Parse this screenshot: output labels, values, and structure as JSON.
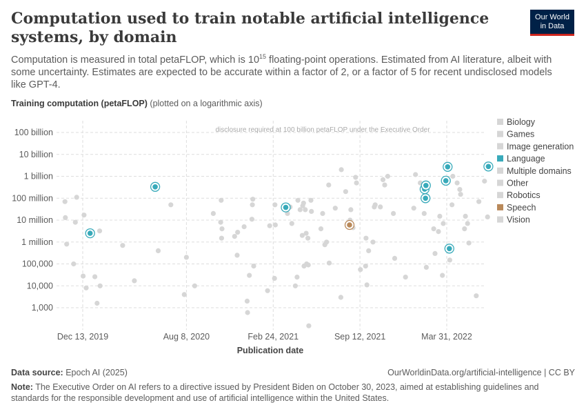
{
  "header": {
    "title": "Computation used to train notable artificial intelligence systems, by domain",
    "logo_line1": "Our World",
    "logo_line2": "in Data",
    "subtitle_pre": "Computation is measured in total petaFLOP, which is 10",
    "subtitle_sup": "15",
    "subtitle_post": " floating-point operations. Estimated from AI literature, albeit with some uncertainty. Estimates are expected to be accurate within a factor of 2, or a factor of 5 for recent undisclosed models like GPT-4."
  },
  "axis_title": {
    "bold": "Training computation (petaFLOP)",
    "note": "(plotted on a logarithmic axis)"
  },
  "footer": {
    "source_label": "Data source:",
    "source_value": "Epoch AI (2025)",
    "url": "OurWorldinData.org/artificial-intelligence | CC BY",
    "note_label": "Note:",
    "note_text": "The Executive Order on AI refers to a directive issued by President Biden on October 30, 2023, aimed at establishing guidelines and standards for the responsible development and use of artificial intelligence within the United States."
  },
  "colors": {
    "muted_point": "#d6d6d6",
    "language": "#38aaba",
    "speech": "#b9895a",
    "grid": "#dddddd",
    "text": "#5b5b5b"
  },
  "chart_data": {
    "type": "scatter",
    "title": "Computation used to train notable artificial intelligence systems, by domain",
    "xlabel": "Publication date",
    "ylabel": "Training computation (petaFLOP)",
    "y_scale": "log",
    "ylim": [
      400,
      200000000000
    ],
    "xlim": [
      "2019-11-01",
      "2022-07-10"
    ],
    "grid": true,
    "legend_position": "right",
    "x_ticks": [
      {
        "date": "2019-12-13",
        "label": "Dec 13, 2019"
      },
      {
        "date": "2020-08-08",
        "label": "Aug 8, 2020"
      },
      {
        "date": "2021-02-24",
        "label": "Feb 24, 2021"
      },
      {
        "date": "2021-09-12",
        "label": "Sep 12, 2021"
      },
      {
        "date": "2022-03-31",
        "label": "Mar 31, 2022"
      }
    ],
    "y_ticks": [
      {
        "value": 1000,
        "label": "1,000"
      },
      {
        "value": 10000,
        "label": "10,000"
      },
      {
        "value": 100000,
        "label": "100,000"
      },
      {
        "value": 1000000,
        "label": "1 million"
      },
      {
        "value": 10000000,
        "label": "10 million"
      },
      {
        "value": 100000000,
        "label": "100 million"
      },
      {
        "value": 1000000000,
        "label": "1 billion"
      },
      {
        "value": 10000000000,
        "label": "10 billion"
      },
      {
        "value": 100000000000,
        "label": "100 billion"
      }
    ],
    "threshold": {
      "value": 100000000000,
      "label": "disclosure required at 100 billion petaFLOP under the Executive Order"
    },
    "legend": [
      {
        "name": "Biology",
        "color": "#d6d6d6"
      },
      {
        "name": "Games",
        "color": "#d6d6d6"
      },
      {
        "name": "Image generation",
        "color": "#d6d6d6"
      },
      {
        "name": "Language",
        "color": "#38aaba"
      },
      {
        "name": "Multiple domains",
        "color": "#d6d6d6"
      },
      {
        "name": "Other",
        "color": "#d6d6d6"
      },
      {
        "name": "Robotics",
        "color": "#d6d6d6"
      },
      {
        "name": "Speech",
        "color": "#b9895a"
      },
      {
        "name": "Vision",
        "color": "#d6d6d6"
      }
    ],
    "highlighted": [
      {
        "domain": "Language",
        "date": "2019-12-30",
        "value": 2500000
      },
      {
        "domain": "Language",
        "date": "2020-05-28",
        "value": 330000000
      },
      {
        "domain": "Language",
        "date": "2021-03-25",
        "value": 38000000
      },
      {
        "domain": "Language",
        "date": "2022-02-08",
        "value": 260000000
      },
      {
        "domain": "Language",
        "date": "2022-02-10",
        "value": 100000000
      },
      {
        "domain": "Language",
        "date": "2022-02-11",
        "value": 380000000
      },
      {
        "domain": "Language",
        "date": "2022-03-29",
        "value": 630000000
      },
      {
        "domain": "Language",
        "date": "2022-04-02",
        "value": 2700000000
      },
      {
        "domain": "Language",
        "date": "2022-04-06",
        "value": 500000
      },
      {
        "domain": "Language",
        "date": "2022-07-05",
        "value": 2800000000
      },
      {
        "domain": "Speech",
        "date": "2021-08-19",
        "value": 6000000
      }
    ],
    "other_points": [
      [
        "2019-11-02",
        70000000
      ],
      [
        "2019-11-03",
        13000000
      ],
      [
        "2019-11-06",
        800000
      ],
      [
        "2019-11-22",
        100000
      ],
      [
        "2019-11-26",
        8000000
      ],
      [
        "2019-11-29",
        110000000
      ],
      [
        "2019-12-14",
        28000
      ],
      [
        "2019-12-16",
        17000000
      ],
      [
        "2019-12-21",
        8000
      ],
      [
        "2020-01-10",
        26000
      ],
      [
        "2020-01-15",
        1600
      ],
      [
        "2020-01-21",
        3200000
      ],
      [
        "2020-01-22",
        10000
      ],
      [
        "2020-03-14",
        700000
      ],
      [
        "2020-04-10",
        17000
      ],
      [
        "2020-06-04",
        400000
      ],
      [
        "2020-07-03",
        50000000
      ],
      [
        "2020-08-03",
        4000
      ],
      [
        "2020-08-08",
        200000
      ],
      [
        "2020-08-27",
        10000
      ],
      [
        "2020-10-09",
        20000000
      ],
      [
        "2020-10-26",
        8000000
      ],
      [
        "2020-10-27",
        80000000
      ],
      [
        "2020-10-28",
        1500000
      ],
      [
        "2020-10-29",
        4000000
      ],
      [
        "2020-11-27",
        1800000
      ],
      [
        "2020-12-03",
        250000
      ],
      [
        "2020-12-04",
        2800000
      ],
      [
        "2020-12-19",
        5000000
      ],
      [
        "2020-12-26",
        2000
      ],
      [
        "2020-12-27",
        600
      ],
      [
        "2020-12-31",
        30000
      ],
      [
        "2021-01-06",
        11000000
      ],
      [
        "2021-01-07",
        50000000
      ],
      [
        "2021-01-08",
        90000000
      ],
      [
        "2021-01-10",
        80000
      ],
      [
        "2021-02-11",
        6000
      ],
      [
        "2021-02-16",
        5500000
      ],
      [
        "2021-02-27",
        22000
      ],
      [
        "2021-02-28",
        50000000
      ],
      [
        "2021-03-01",
        6000000
      ],
      [
        "2021-03-29",
        20000000
      ],
      [
        "2021-04-04",
        40000000
      ],
      [
        "2021-04-08",
        7000000
      ],
      [
        "2021-04-16",
        10000
      ],
      [
        "2021-04-20",
        25000
      ],
      [
        "2021-04-22",
        80000000
      ],
      [
        "2021-04-27",
        30000000
      ],
      [
        "2021-05-02",
        2000000
      ],
      [
        "2021-05-03",
        45000000
      ],
      [
        "2021-05-05",
        60000000
      ],
      [
        "2021-05-06",
        80000
      ],
      [
        "2021-05-09",
        30000000
      ],
      [
        "2021-05-11",
        2500000
      ],
      [
        "2021-05-12",
        100000
      ],
      [
        "2021-05-15",
        1500000
      ],
      [
        "2021-05-16",
        90000
      ],
      [
        "2021-05-17",
        150
      ],
      [
        "2021-05-22",
        80000000
      ],
      [
        "2021-05-23",
        25000000
      ],
      [
        "2021-06-14",
        4000000
      ],
      [
        "2021-06-18",
        20000000
      ],
      [
        "2021-06-23",
        750000
      ],
      [
        "2021-06-27",
        1000000
      ],
      [
        "2021-07-02",
        400000000
      ],
      [
        "2021-07-03",
        110000
      ],
      [
        "2021-07-17",
        35000000
      ],
      [
        "2021-07-30",
        3000
      ],
      [
        "2021-07-31",
        2000000000
      ],
      [
        "2021-08-10",
        200000000
      ],
      [
        "2021-08-20",
        10000000
      ],
      [
        "2021-08-22",
        30000000
      ],
      [
        "2021-08-27",
        4500000
      ],
      [
        "2021-09-02",
        900000000
      ],
      [
        "2021-09-04",
        500000000
      ],
      [
        "2021-09-13",
        55000
      ],
      [
        "2021-09-25",
        80000
      ],
      [
        "2021-09-26",
        1500000
      ],
      [
        "2021-09-28",
        11000
      ],
      [
        "2021-10-02",
        400000
      ],
      [
        "2021-10-12",
        1000000
      ],
      [
        "2021-10-15",
        40000000
      ],
      [
        "2021-10-17",
        50000000
      ],
      [
        "2021-10-29",
        40000000
      ],
      [
        "2021-11-04",
        700000000
      ],
      [
        "2021-11-08",
        400000000
      ],
      [
        "2021-11-15",
        1000000000
      ],
      [
        "2021-11-28",
        20000000
      ],
      [
        "2021-12-01",
        180000
      ],
      [
        "2021-12-26",
        25000
      ],
      [
        "2022-01-14",
        35000000
      ],
      [
        "2022-01-18",
        1200000000
      ],
      [
        "2022-01-29",
        500000000
      ],
      [
        "2022-02-07",
        20000000
      ],
      [
        "2022-02-12",
        70000
      ],
      [
        "2022-03-01",
        4000000
      ],
      [
        "2022-03-04",
        300000
      ],
      [
        "2022-03-12",
        3000000
      ],
      [
        "2022-03-15",
        15000000
      ],
      [
        "2022-03-21",
        30000
      ],
      [
        "2022-03-23",
        7000000
      ],
      [
        "2022-04-07",
        150000
      ],
      [
        "2022-04-12",
        50000000
      ],
      [
        "2022-04-14",
        1000000000
      ],
      [
        "2022-04-24",
        500000000
      ],
      [
        "2022-04-30",
        250000000
      ],
      [
        "2022-05-02",
        150000000
      ],
      [
        "2022-05-11",
        4000000
      ],
      [
        "2022-05-13",
        15000000
      ],
      [
        "2022-05-18",
        7000000
      ],
      [
        "2022-05-21",
        900000
      ],
      [
        "2022-06-07",
        3500
      ],
      [
        "2022-06-13",
        70000000
      ],
      [
        "2022-06-26",
        600000000
      ],
      [
        "2022-07-03",
        14000000
      ]
    ]
  }
}
